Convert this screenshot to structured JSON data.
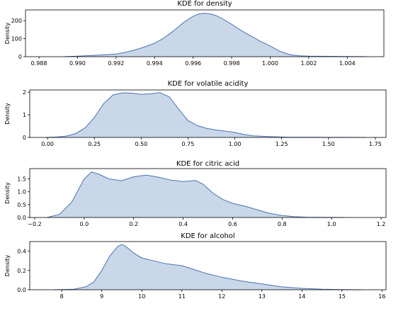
{
  "chart_data": [
    {
      "type": "area",
      "title": "KDE for density",
      "xlabel": "",
      "ylabel": "Density",
      "xlim": [
        0.9873,
        1.0059
      ],
      "ylim": [
        0,
        260
      ],
      "xticks": [
        0.988,
        0.99,
        0.992,
        0.994,
        0.996,
        0.998,
        1.0,
        1.002,
        1.004
      ],
      "xtick_labels": [
        "0.988",
        "0.990",
        "0.992",
        "0.994",
        "0.996",
        "0.998",
        "1.000",
        "1.002",
        "1.004"
      ],
      "yticks": [
        0,
        100,
        200
      ],
      "ytick_labels": [
        "0",
        "100",
        "200"
      ],
      "x": [
        0.9893,
        0.99,
        0.991,
        0.992,
        0.9925,
        0.993,
        0.9935,
        0.994,
        0.9945,
        0.995,
        0.9955,
        0.996,
        0.9963,
        0.9966,
        0.9969,
        0.9972,
        0.9975,
        0.998,
        0.9985,
        0.999,
        0.9995,
        1.0,
        1.0005,
        1.001,
        1.0015,
        1.002,
        1.003,
        1.004,
        1.005
      ],
      "y": [
        0,
        3,
        8,
        15,
        25,
        38,
        55,
        75,
        105,
        145,
        190,
        225,
        238,
        242,
        238,
        228,
        212,
        180,
        145,
        115,
        85,
        60,
        30,
        12,
        5,
        3,
        2,
        1,
        0
      ]
    },
    {
      "type": "area",
      "title": "KDE for volatile acidity",
      "xlabel": "",
      "ylabel": "Density",
      "xlim": [
        -0.095,
        1.807
      ],
      "ylim": [
        0,
        2.1
      ],
      "xticks": [
        0.0,
        0.25,
        0.5,
        0.75,
        1.0,
        1.25,
        1.5,
        1.75
      ],
      "xtick_labels": [
        "0.00",
        "0.25",
        "0.50",
        "0.75",
        "1.00",
        "1.25",
        "1.50",
        "1.75"
      ],
      "yticks": [
        0,
        1,
        2
      ],
      "ytick_labels": [
        "0",
        "1",
        "2"
      ],
      "x": [
        -0.01,
        0.05,
        0.1,
        0.15,
        0.2,
        0.25,
        0.3,
        0.35,
        0.4,
        0.45,
        0.5,
        0.55,
        0.6,
        0.65,
        0.7,
        0.75,
        0.8,
        0.85,
        0.9,
        0.95,
        1.0,
        1.05,
        1.1,
        1.2,
        1.3,
        1.4,
        1.5,
        1.6,
        1.7
      ],
      "y": [
        0,
        0.02,
        0.06,
        0.17,
        0.42,
        0.88,
        1.5,
        1.88,
        1.97,
        1.96,
        1.91,
        1.93,
        1.98,
        1.8,
        1.25,
        0.75,
        0.52,
        0.4,
        0.33,
        0.28,
        0.22,
        0.13,
        0.07,
        0.03,
        0.01,
        0.005,
        0.004,
        0.002,
        0
      ]
    },
    {
      "type": "area",
      "title": "KDE for citric acid",
      "xlabel": "",
      "ylabel": "Density",
      "xlim": [
        -0.22,
        1.22
      ],
      "ylim": [
        0,
        1.9
      ],
      "xticks": [
        -0.2,
        0.0,
        0.2,
        0.4,
        0.6,
        0.8,
        1.0,
        1.2
      ],
      "xtick_labels": [
        "−0.2",
        "0.0",
        "0.2",
        "0.4",
        "0.6",
        "0.8",
        "1.0",
        "1.2"
      ],
      "yticks": [
        0.0,
        0.5,
        1.0,
        1.5
      ],
      "ytick_labels": [
        "0.0",
        "0.5",
        "1.0",
        "1.5"
      ],
      "x": [
        -0.15,
        -0.1,
        -0.05,
        0.0,
        0.03,
        0.06,
        0.1,
        0.15,
        0.2,
        0.25,
        0.3,
        0.35,
        0.4,
        0.45,
        0.48,
        0.52,
        0.56,
        0.6,
        0.65,
        0.7,
        0.75,
        0.8,
        0.85,
        0.9,
        1.0,
        1.05
      ],
      "y": [
        0,
        0.12,
        0.6,
        1.5,
        1.77,
        1.68,
        1.5,
        1.43,
        1.58,
        1.65,
        1.57,
        1.45,
        1.4,
        1.44,
        1.3,
        0.95,
        0.7,
        0.55,
        0.44,
        0.3,
        0.16,
        0.08,
        0.03,
        0.01,
        0.003,
        0
      ]
    },
    {
      "type": "area",
      "title": "KDE for alcohol",
      "xlabel": "",
      "ylabel": "Density",
      "xlim": [
        7.2,
        16.1
      ],
      "ylim": [
        0,
        0.5
      ],
      "xticks": [
        8,
        9,
        10,
        11,
        12,
        13,
        14,
        15,
        16
      ],
      "xtick_labels": [
        "8",
        "9",
        "10",
        "11",
        "12",
        "13",
        "14",
        "15",
        "16"
      ],
      "yticks": [
        0.0,
        0.2,
        0.4
      ],
      "ytick_labels": [
        "0.0",
        "0.2",
        "0.4"
      ],
      "x": [
        7.8,
        8.3,
        8.6,
        8.8,
        9.0,
        9.2,
        9.4,
        9.5,
        9.6,
        9.8,
        10.0,
        10.3,
        10.6,
        11.0,
        11.3,
        11.6,
        12.0,
        12.5,
        13.0,
        13.5,
        14.0,
        14.5,
        15.0,
        15.5
      ],
      "y": [
        0,
        0.005,
        0.03,
        0.08,
        0.2,
        0.35,
        0.45,
        0.47,
        0.45,
        0.38,
        0.33,
        0.3,
        0.27,
        0.25,
        0.21,
        0.17,
        0.13,
        0.09,
        0.06,
        0.03,
        0.015,
        0.005,
        0.002,
        0
      ]
    }
  ]
}
